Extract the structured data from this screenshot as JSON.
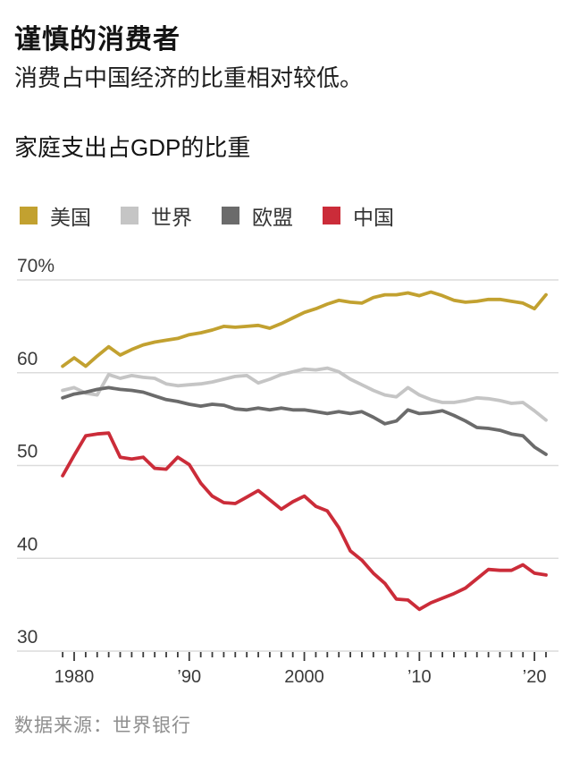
{
  "header": {
    "title": "谨慎的消费者",
    "subtitle": "消费占中国经济的比重相对较低。"
  },
  "source": "数据来源：世界银行",
  "colors": {
    "us": "#c2a130",
    "world": "#c5c5c5",
    "eu": "#6b6b6b",
    "china": "#cb2c39",
    "gridline": "#dcdcdc",
    "axis_text": "#3b3b3b",
    "tick": "#3b3b3b"
  },
  "chart_data": {
    "type": "line",
    "title": "家庭支出占GDP的比重",
    "grid": "horizontal",
    "legend_position": "top",
    "ylim": [
      30,
      71
    ],
    "xlim": [
      1979,
      2021
    ],
    "x": [
      1979,
      1980,
      1981,
      1982,
      1983,
      1984,
      1985,
      1986,
      1987,
      1988,
      1989,
      1990,
      1991,
      1992,
      1993,
      1994,
      1995,
      1996,
      1997,
      1998,
      1999,
      2000,
      2001,
      2002,
      2003,
      2004,
      2005,
      2006,
      2007,
      2008,
      2009,
      2010,
      2011,
      2012,
      2013,
      2014,
      2015,
      2016,
      2017,
      2018,
      2019,
      2020,
      2021
    ],
    "yticks": [
      {
        "value": 70,
        "label": "70%"
      },
      {
        "value": 60,
        "label": "60"
      },
      {
        "value": 50,
        "label": "50"
      },
      {
        "value": 40,
        "label": "40"
      },
      {
        "value": 30,
        "label": "30"
      }
    ],
    "xticks": [
      {
        "value": 1980,
        "label": "1980"
      },
      {
        "value": 1990,
        "label": "’90"
      },
      {
        "value": 2000,
        "label": "2000"
      },
      {
        "value": 2010,
        "label": "’10"
      },
      {
        "value": 2020,
        "label": "’20"
      }
    ],
    "series": [
      {
        "key": "us",
        "name": "美国",
        "color": "#c2a130",
        "values": [
          60.7,
          61.6,
          60.7,
          61.8,
          62.8,
          61.9,
          62.5,
          63.0,
          63.3,
          63.5,
          63.7,
          64.1,
          64.3,
          64.6,
          65.0,
          64.9,
          65.0,
          65.1,
          64.8,
          65.3,
          65.9,
          66.5,
          66.9,
          67.4,
          67.8,
          67.6,
          67.5,
          68.1,
          68.4,
          68.4,
          68.6,
          68.3,
          68.7,
          68.3,
          67.8,
          67.6,
          67.7,
          67.9,
          67.9,
          67.7,
          67.5,
          66.9,
          68.4
        ]
      },
      {
        "key": "world",
        "name": "世界",
        "color": "#c5c5c5",
        "values": [
          58.1,
          58.4,
          57.8,
          57.6,
          59.8,
          59.4,
          59.7,
          59.5,
          59.4,
          58.8,
          58.6,
          58.7,
          58.8,
          59.0,
          59.3,
          59.6,
          59.7,
          58.9,
          59.3,
          59.8,
          60.1,
          60.4,
          60.3,
          60.5,
          60.1,
          59.3,
          58.7,
          58.1,
          57.6,
          57.4,
          58.4,
          57.6,
          57.1,
          56.8,
          56.8,
          57.0,
          57.3,
          57.2,
          57.0,
          56.7,
          56.8,
          55.9,
          54.9
        ]
      },
      {
        "key": "eu",
        "name": "欧盟",
        "color": "#6b6b6b",
        "values": [
          57.3,
          57.7,
          57.9,
          58.2,
          58.4,
          58.2,
          58.1,
          57.9,
          57.5,
          57.1,
          56.9,
          56.6,
          56.4,
          56.6,
          56.5,
          56.1,
          56.0,
          56.2,
          56.0,
          56.2,
          56.0,
          56.0,
          55.8,
          55.6,
          55.8,
          55.6,
          55.8,
          55.2,
          54.5,
          54.8,
          56.0,
          55.6,
          55.7,
          55.9,
          55.4,
          54.8,
          54.1,
          54.0,
          53.8,
          53.4,
          53.2,
          52.0,
          51.2
        ]
      },
      {
        "key": "china",
        "name": "中国",
        "color": "#cb2c39",
        "values": [
          48.9,
          51.1,
          53.2,
          53.4,
          53.5,
          50.9,
          50.7,
          50.9,
          49.7,
          49.6,
          50.9,
          50.1,
          48.1,
          46.7,
          46.0,
          45.9,
          46.6,
          47.3,
          46.3,
          45.3,
          46.1,
          46.7,
          45.6,
          45.1,
          43.3,
          40.8,
          39.8,
          38.4,
          37.3,
          35.6,
          35.5,
          34.5,
          35.2,
          35.7,
          36.2,
          36.8,
          37.8,
          38.8,
          38.7,
          38.7,
          39.3,
          38.4,
          38.2
        ]
      }
    ]
  }
}
